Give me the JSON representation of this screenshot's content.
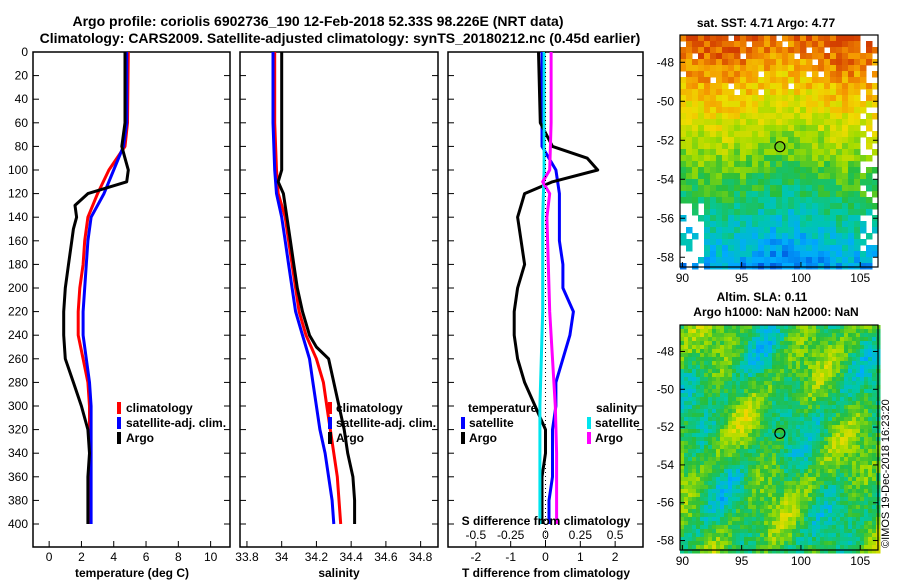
{
  "title": {
    "line1": "Argo profile: coriolis 6902736_190 12-Feb-2018 52.33S 98.226E (NRT data)",
    "line2": "Climatology: CARS2009. Satellite-adjusted climatology: synTS_20180212.nc (0.45d earlier)"
  },
  "colors": {
    "climatology": "#ff0000",
    "satellite": "#0000ff",
    "argo": "#000000",
    "sat_salinity": "#00e5ee",
    "clim_salinity": "#ff00ff"
  },
  "depth_ticks": [
    0,
    20,
    40,
    60,
    80,
    100,
    120,
    140,
    160,
    180,
    200,
    220,
    240,
    260,
    280,
    300,
    320,
    340,
    360,
    380,
    400
  ],
  "chart_data": [
    {
      "type": "line",
      "title": "",
      "xlabel": "temperature (deg C)",
      "ylabel": "",
      "xlim": [
        -1,
        11.2
      ],
      "ylim": [
        400,
        0
      ],
      "xticks": [
        0,
        2,
        4,
        6,
        8,
        10
      ],
      "legend": [
        "climatology",
        "satellite-adj. clim.",
        "Argo"
      ],
      "series": [
        {
          "name": "climatology",
          "color": "#ff0000",
          "depth": [
            0,
            60,
            80,
            100,
            120,
            140,
            160,
            180,
            200,
            220,
            240,
            260,
            280,
            300,
            320,
            340,
            360,
            380,
            400
          ],
          "values": [
            4.9,
            4.85,
            4.7,
            3.7,
            3.0,
            2.4,
            2.2,
            2.1,
            1.9,
            1.8,
            1.8,
            2.1,
            2.4,
            2.5,
            2.5,
            2.5,
            2.5,
            2.5,
            2.5
          ]
        },
        {
          "name": "satellite-adj. clim.",
          "color": "#0000ff",
          "depth": [
            0,
            60,
            80,
            100,
            120,
            140,
            160,
            180,
            200,
            220,
            240,
            260,
            280,
            300,
            320,
            340,
            360,
            380,
            400
          ],
          "values": [
            4.8,
            4.8,
            4.6,
            4.0,
            3.4,
            2.6,
            2.4,
            2.3,
            2.2,
            2.1,
            2.1,
            2.3,
            2.5,
            2.6,
            2.6,
            2.6,
            2.6,
            2.6,
            2.6
          ]
        },
        {
          "name": "Argo",
          "color": "#000000",
          "depth": [
            0,
            60,
            80,
            90,
            100,
            110,
            120,
            130,
            140,
            150,
            160,
            180,
            200,
            220,
            240,
            260,
            280,
            300,
            320,
            340,
            360,
            380,
            400
          ],
          "values": [
            4.7,
            4.7,
            4.5,
            4.7,
            4.9,
            4.8,
            2.4,
            1.6,
            1.7,
            1.5,
            1.4,
            1.2,
            1.0,
            0.9,
            0.9,
            1.0,
            1.5,
            2.0,
            2.4,
            2.5,
            2.4,
            2.4,
            2.4
          ]
        }
      ]
    },
    {
      "type": "line",
      "title": "",
      "xlabel": "salinity",
      "ylabel": "",
      "xlim": [
        33.76,
        34.9
      ],
      "ylim": [
        400,
        0
      ],
      "xticks": [
        33.8,
        34,
        34.2,
        34.4,
        34.6,
        34.8
      ],
      "legend": [
        "climatology",
        "satellite-adj. clim.",
        "Argo"
      ],
      "series": [
        {
          "name": "climatology",
          "color": "#ff0000",
          "depth": [
            0,
            60,
            100,
            120,
            140,
            160,
            180,
            200,
            220,
            240,
            260,
            280,
            300,
            320,
            340,
            360,
            380,
            400
          ],
          "values": [
            33.96,
            33.96,
            33.97,
            33.98,
            34.02,
            34.04,
            34.06,
            34.08,
            34.1,
            34.14,
            34.2,
            34.24,
            34.26,
            34.28,
            34.3,
            34.32,
            34.33,
            34.34
          ]
        },
        {
          "name": "satellite-adj. clim.",
          "color": "#0000ff",
          "depth": [
            0,
            60,
            100,
            120,
            140,
            160,
            180,
            200,
            220,
            240,
            260,
            280,
            300,
            320,
            340,
            360,
            380,
            400
          ],
          "values": [
            33.95,
            33.95,
            33.96,
            33.97,
            34.0,
            34.02,
            34.04,
            34.06,
            34.08,
            34.12,
            34.16,
            34.18,
            34.2,
            34.22,
            34.25,
            34.27,
            34.29,
            34.3
          ]
        },
        {
          "name": "Argo",
          "color": "#000000",
          "depth": [
            0,
            60,
            100,
            110,
            120,
            140,
            160,
            180,
            200,
            220,
            240,
            250,
            260,
            280,
            300,
            320,
            340,
            360,
            380,
            400
          ],
          "values": [
            34.0,
            34.0,
            34.0,
            33.98,
            34.01,
            34.03,
            34.05,
            34.07,
            34.09,
            34.12,
            34.16,
            34.2,
            34.27,
            34.3,
            34.33,
            34.36,
            34.38,
            34.41,
            34.42,
            34.42
          ]
        }
      ]
    },
    {
      "type": "line",
      "title": "",
      "xlabel": "T difference from climatology",
      "ylabel": "",
      "xlim": [
        -2.8,
        2.8
      ],
      "ylim": [
        400,
        0
      ],
      "xticks": [
        -2,
        -1,
        0,
        1,
        2
      ],
      "secondary_label": "S difference from climatology",
      "secondary_ticks": [
        "-0.5",
        "-0.25",
        "0",
        "0.25",
        "0.5"
      ],
      "legend_temperature": {
        "heading": "temperature",
        "items": [
          "satellite",
          "Argo"
        ]
      },
      "legend_salinity": {
        "heading": "salinity",
        "items": [
          "satellite",
          "Argo"
        ]
      },
      "series": [
        {
          "name": "temperature satellite",
          "color": "#0000ff",
          "depth": [
            0,
            60,
            80,
            100,
            120,
            140,
            160,
            180,
            200,
            220,
            240,
            260,
            280,
            300,
            320,
            340,
            360,
            380,
            400
          ],
          "values": [
            -0.1,
            -0.1,
            -0.1,
            0.3,
            0.4,
            0.4,
            0.4,
            0.5,
            0.5,
            0.8,
            0.7,
            0.5,
            0.3,
            0.3,
            0.2,
            0.2,
            0.2,
            0.1,
            0.1
          ]
        },
        {
          "name": "temperature Argo",
          "color": "#000000",
          "depth": [
            0,
            60,
            80,
            90,
            100,
            110,
            120,
            130,
            140,
            160,
            180,
            200,
            220,
            240,
            260,
            280,
            300,
            320,
            340,
            360,
            380,
            400
          ],
          "values": [
            -0.2,
            -0.15,
            0.2,
            1.2,
            1.5,
            0.2,
            -0.6,
            -0.7,
            -0.8,
            -0.7,
            -0.6,
            -0.8,
            -0.9,
            -0.9,
            -0.8,
            -0.6,
            -0.3,
            0.0,
            0.0,
            -0.1,
            -0.1,
            -0.1
          ]
        },
        {
          "name": "salinity satellite",
          "color": "#00e5ee",
          "depth": [
            0,
            60,
            100,
            140,
            180,
            220,
            260,
            300,
            340,
            380,
            400
          ],
          "values": [
            -0.01,
            -0.01,
            -0.01,
            -0.02,
            -0.02,
            -0.02,
            -0.03,
            -0.04,
            -0.04,
            -0.04,
            -0.04
          ]
        },
        {
          "name": "salinity Argo",
          "color": "#ff00ff",
          "depth": [
            0,
            60,
            100,
            110,
            120,
            140,
            180,
            220,
            260,
            300,
            340,
            380,
            400
          ],
          "values": [
            0.04,
            0.04,
            0.03,
            -0.02,
            0.03,
            0.01,
            0.02,
            0.03,
            0.05,
            0.07,
            0.08,
            0.08,
            0.08
          ]
        }
      ]
    },
    {
      "type": "heatmap",
      "title": "sat. SST: 4.71  Argo: 4.77",
      "xlim": [
        89.8,
        106.5
      ],
      "ylim": [
        -58.5,
        -46.6
      ],
      "xticks": [
        90,
        95,
        100,
        105
      ],
      "yticks": [
        -48,
        -50,
        -52,
        -54,
        -56,
        -58
      ],
      "marker": {
        "lon": 98.226,
        "lat": -52.33
      }
    },
    {
      "type": "heatmap",
      "title": "Altim. SLA: 0.11",
      "subtitle": "Argo h1000: NaN h2000: NaN",
      "xlim": [
        89.8,
        106.5
      ],
      "ylim": [
        -58.5,
        -46.6
      ],
      "xticks": [
        90,
        95,
        100,
        105
      ],
      "yticks": [
        -48,
        -50,
        -52,
        -54,
        -56,
        -58
      ],
      "marker": {
        "lon": 98.226,
        "lat": -52.33
      }
    }
  ],
  "stamp": "©IMOS 19-Dec-2018 16:23:20"
}
